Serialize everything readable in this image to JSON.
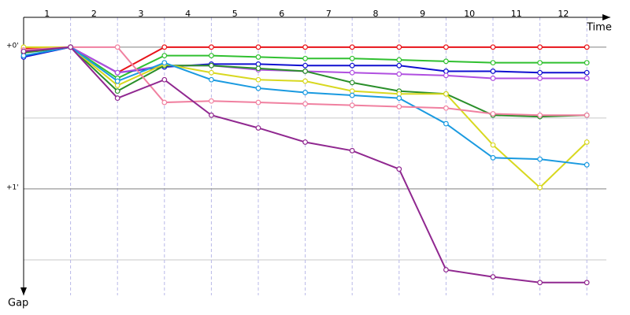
{
  "chart_data": {
    "type": "line",
    "x_label": "Time",
    "y_label": "Gap",
    "x": [
      0,
      1,
      2,
      3,
      4,
      5,
      6,
      7,
      8,
      9,
      10,
      11,
      12
    ],
    "xlim": [
      0,
      12.5
    ],
    "xticks": [
      {
        "value": 0.5,
        "label": "1"
      },
      {
        "value": 1.5,
        "label": "2"
      },
      {
        "value": 2.5,
        "label": "3"
      },
      {
        "value": 3.5,
        "label": "4"
      },
      {
        "value": 4.5,
        "label": "5"
      },
      {
        "value": 5.5,
        "label": "6"
      },
      {
        "value": 6.5,
        "label": "7"
      },
      {
        "value": 7.5,
        "label": "8"
      },
      {
        "value": 8.5,
        "label": "9"
      },
      {
        "value": 9.5,
        "label": "10"
      },
      {
        "value": 10.5,
        "label": "11"
      },
      {
        "value": 11.5,
        "label": "12"
      }
    ],
    "ylim": [
      -0.21,
      1.75
    ],
    "y_inverted": true,
    "yticks": [
      {
        "value": 0,
        "label": "+0'"
      },
      {
        "value": 1,
        "label": "+1'"
      }
    ],
    "minor_grid": [
      0.5,
      1.5
    ],
    "grid": true,
    "series": [
      {
        "color": "#e8141a",
        "values": [
          0.01,
          0,
          0.18,
          0,
          0,
          0,
          0,
          0,
          0,
          0,
          0,
          0,
          0
        ]
      },
      {
        "color": "#30c030",
        "values": [
          0.03,
          0,
          0.22,
          0.06,
          0.06,
          0.07,
          0.08,
          0.08,
          0.09,
          0.1,
          0.11,
          0.11,
          0.11
        ]
      },
      {
        "color": "#1010d0",
        "values": [
          0.07,
          0,
          0.18,
          0.14,
          0.12,
          0.12,
          0.13,
          0.13,
          0.13,
          0.17,
          0.17,
          0.18,
          0.18
        ]
      },
      {
        "color": "#b050e0",
        "values": [
          0.03,
          0,
          0.18,
          0.13,
          0.13,
          0.16,
          0.17,
          0.18,
          0.19,
          0.2,
          0.22,
          0.22,
          0.22
        ]
      },
      {
        "color": "#2a8f2a",
        "values": [
          0.04,
          0,
          0.31,
          0.13,
          0.13,
          0.15,
          0.17,
          0.25,
          0.31,
          0.33,
          0.48,
          0.49,
          0.48
        ]
      },
      {
        "color": "#d8d820",
        "values": [
          0,
          0,
          0.27,
          0.12,
          0.18,
          0.23,
          0.24,
          0.31,
          0.33,
          0.33,
          0.69,
          0.99,
          0.67
        ]
      },
      {
        "color": "#1a9ae0",
        "values": [
          0.06,
          0,
          0.24,
          0.11,
          0.23,
          0.29,
          0.32,
          0.34,
          0.36,
          0.54,
          0.78,
          0.79,
          0.83
        ]
      },
      {
        "color": "#f080a0",
        "values": [
          0.02,
          0,
          0,
          0.39,
          0.38,
          0.39,
          0.4,
          0.41,
          0.42,
          0.43,
          0.47,
          0.48,
          0.48
        ]
      },
      {
        "color": "#902890",
        "values": [
          0.03,
          0,
          0.36,
          0.23,
          0.48,
          0.57,
          0.67,
          0.73,
          0.86,
          1.57,
          1.62,
          1.66,
          1.66
        ]
      }
    ]
  }
}
